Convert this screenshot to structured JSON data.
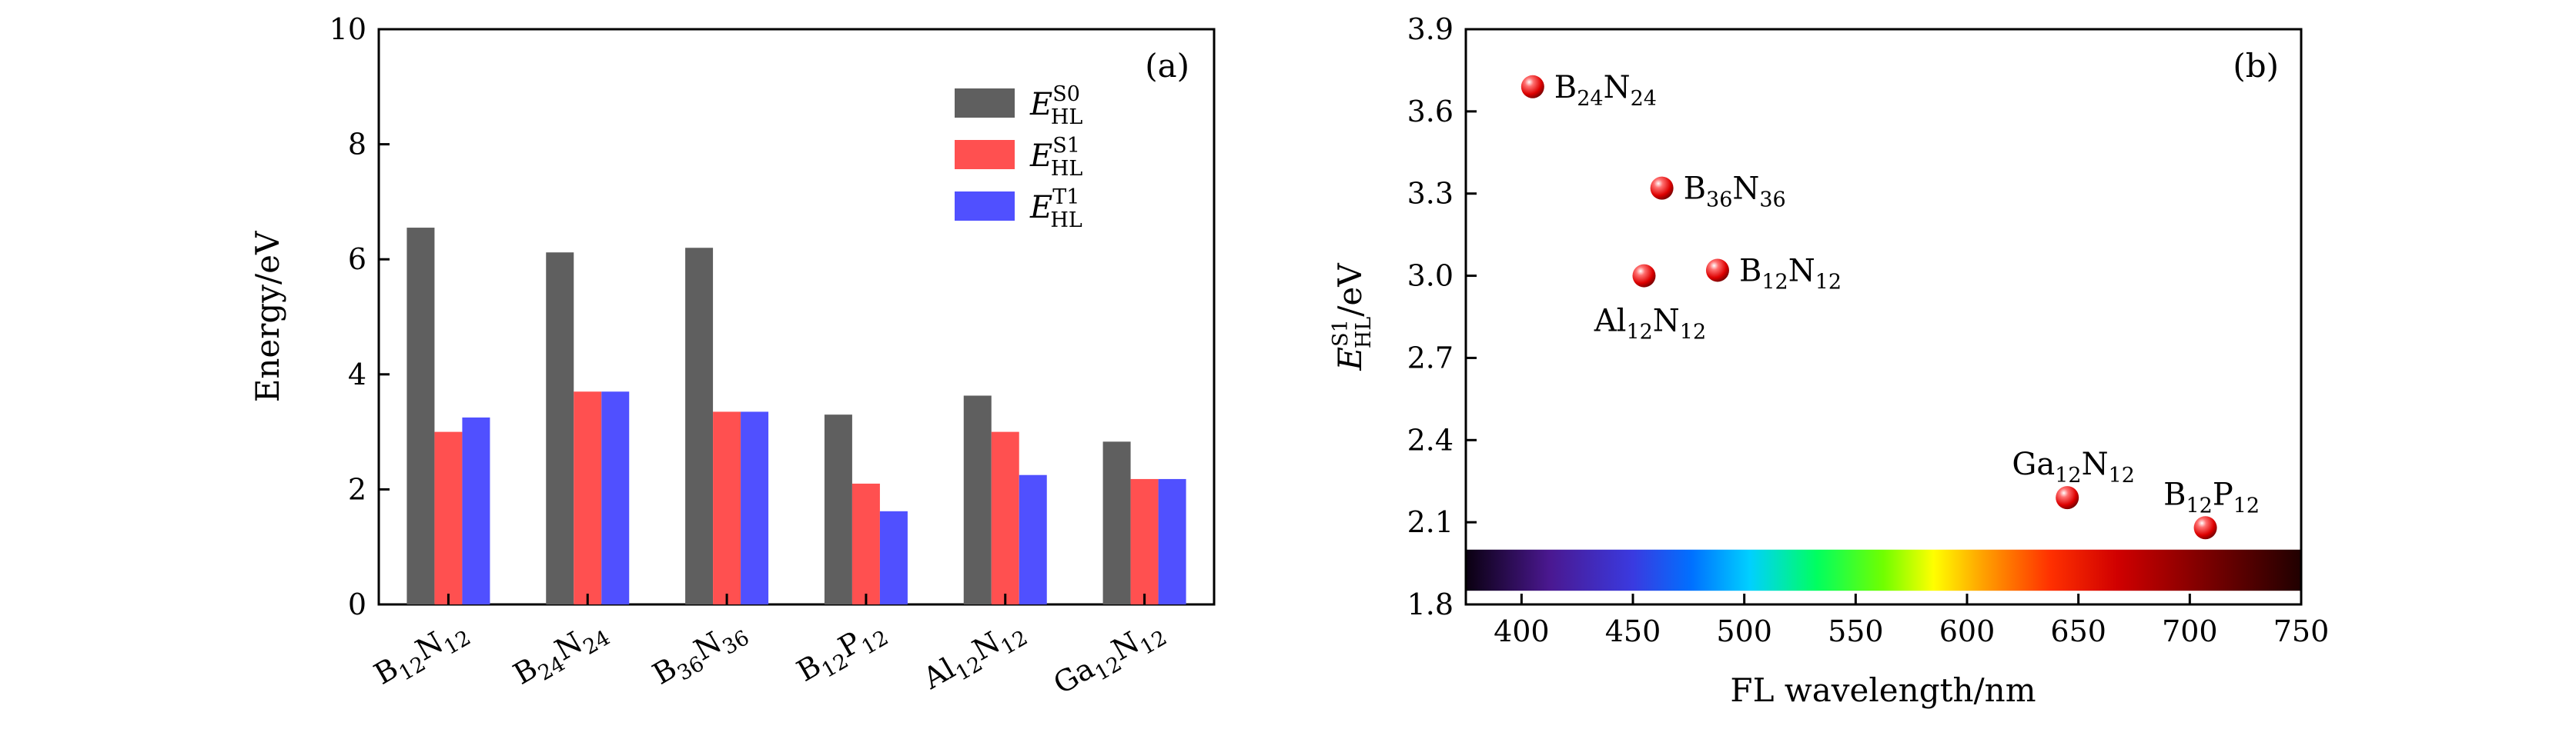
{
  "chart_data": [
    {
      "type": "bar",
      "panel_label": "(a)",
      "ylabel": "Energy/eV",
      "xlabel": "",
      "ylim": [
        0,
        10
      ],
      "yticks": [
        0,
        2,
        4,
        6,
        8,
        10
      ],
      "grid": false,
      "legend_position": "top-right",
      "categories": [
        {
          "base": "B",
          "s1": "12",
          "mid": "N",
          "s2": "12"
        },
        {
          "base": "B",
          "s1": "24",
          "mid": "N",
          "s2": "24"
        },
        {
          "base": "B",
          "s1": "36",
          "mid": "N",
          "s2": "36"
        },
        {
          "base": "B",
          "s1": "12",
          "mid": "P",
          "s2": "12"
        },
        {
          "base": "Al",
          "s1": "12",
          "mid": "N",
          "s2": "12"
        },
        {
          "base": "Ga",
          "s1": "12",
          "mid": "N",
          "s2": "12"
        }
      ],
      "series": [
        {
          "name": {
            "base": "E",
            "sup": "S0",
            "sub": "HL"
          },
          "color": "#5f5f5f",
          "values": [
            6.55,
            6.12,
            6.2,
            3.3,
            3.63,
            2.83
          ]
        },
        {
          "name": {
            "base": "E",
            "sup": "S1",
            "sub": "HL"
          },
          "color": "#ff5050",
          "values": [
            3.0,
            3.7,
            3.35,
            2.1,
            3.0,
            2.18
          ]
        },
        {
          "name": {
            "base": "E",
            "sup": "T1",
            "sub": "HL"
          },
          "color": "#5050ff",
          "values": [
            3.25,
            3.7,
            3.35,
            1.62,
            2.25,
            2.18
          ]
        }
      ]
    },
    {
      "type": "scatter",
      "panel_label": "(b)",
      "xlabel": "FL wavelength/nm",
      "ylabel": {
        "base": "E",
        "sup": "S1",
        "sub": "HL",
        "tail": "/eV"
      },
      "xlim": [
        375,
        750
      ],
      "ylim": [
        1.8,
        3.9
      ],
      "xticks": [
        400,
        450,
        500,
        550,
        600,
        650,
        700,
        750
      ],
      "yticks": [
        1.8,
        2.1,
        2.4,
        2.7,
        3.0,
        3.3,
        3.6,
        3.9
      ],
      "grid": false,
      "spectrum_band": {
        "y_range": [
          1.85,
          2.0
        ]
      },
      "points": [
        {
          "x": 405,
          "y": 3.69,
          "label": {
            "base": "B",
            "s1": "24",
            "mid": "N",
            "s2": "24"
          },
          "label_pos": "right"
        },
        {
          "x": 463,
          "y": 3.32,
          "label": {
            "base": "B",
            "s1": "36",
            "mid": "N",
            "s2": "36"
          },
          "label_pos": "right"
        },
        {
          "x": 488,
          "y": 3.02,
          "label": {
            "base": "B",
            "s1": "12",
            "mid": "N",
            "s2": "12"
          },
          "label_pos": "right"
        },
        {
          "x": 455,
          "y": 3.0,
          "label": {
            "base": "Al",
            "s1": "12",
            "mid": "N",
            "s2": "12"
          },
          "label_pos": "below"
        },
        {
          "x": 645,
          "y": 2.19,
          "label": {
            "base": "Ga",
            "s1": "12",
            "mid": "N",
            "s2": "12"
          },
          "label_pos": "above"
        },
        {
          "x": 707,
          "y": 2.08,
          "label": {
            "base": "B",
            "s1": "12",
            "mid": "P",
            "s2": "12"
          },
          "label_pos": "above"
        }
      ]
    }
  ]
}
